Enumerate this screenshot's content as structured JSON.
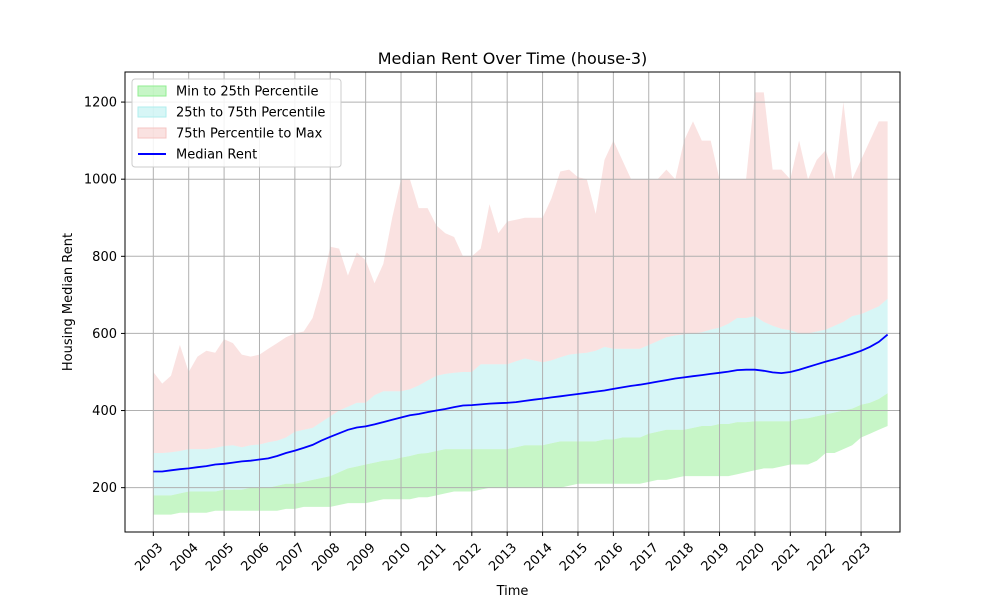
{
  "chart_data": {
    "type": "area",
    "title": "Median Rent Over Time (house-3)",
    "xlabel": "Time",
    "ylabel": "Housing Median Rent",
    "xlim": [
      2002.2,
      2024.1
    ],
    "ylim": [
      85,
      1278
    ],
    "xticks": [
      2003,
      2004,
      2005,
      2006,
      2007,
      2008,
      2009,
      2010,
      2011,
      2012,
      2013,
      2014,
      2015,
      2016,
      2017,
      2018,
      2019,
      2020,
      2021,
      2022,
      2023
    ],
    "yticks": [
      200,
      400,
      600,
      800,
      1000,
      1200
    ],
    "grid": true,
    "legend_position": "top-left",
    "legend": [
      {
        "label": "Min to 25th Percentile",
        "kind": "fill",
        "color": "#90ee90"
      },
      {
        "label": "25th to 75th Percentile",
        "kind": "fill",
        "color": "#afeeee"
      },
      {
        "label": "75th Percentile to Max",
        "kind": "fill",
        "color": "#f5c6c4"
      },
      {
        "label": "Median Rent",
        "kind": "line",
        "color": "#0000ff"
      }
    ],
    "colors": {
      "min_band": "#90ee90",
      "mid_band": "#afeeee",
      "max_band": "#f5c6c4",
      "median": "#0000ff",
      "grid": "#b0b0b0"
    },
    "x": [
      2003.0,
      2003.25,
      2003.5,
      2003.75,
      2004.0,
      2004.25,
      2004.5,
      2004.75,
      2005.0,
      2005.25,
      2005.5,
      2005.75,
      2006.0,
      2006.25,
      2006.5,
      2006.75,
      2007.0,
      2007.25,
      2007.5,
      2007.75,
      2008.0,
      2008.25,
      2008.5,
      2008.75,
      2009.0,
      2009.25,
      2009.5,
      2009.75,
      2010.0,
      2010.25,
      2010.5,
      2010.75,
      2011.0,
      2011.25,
      2011.5,
      2011.75,
      2012.0,
      2012.25,
      2012.5,
      2012.75,
      2013.0,
      2013.25,
      2013.5,
      2013.75,
      2014.0,
      2014.25,
      2014.5,
      2014.75,
      2015.0,
      2015.25,
      2015.5,
      2015.75,
      2016.0,
      2016.25,
      2016.5,
      2016.75,
      2017.0,
      2017.25,
      2017.5,
      2017.75,
      2018.0,
      2018.25,
      2018.5,
      2018.75,
      2019.0,
      2019.25,
      2019.5,
      2019.75,
      2020.0,
      2020.25,
      2020.5,
      2020.75,
      2021.0,
      2021.25,
      2021.5,
      2021.75,
      2022.0,
      2022.25,
      2022.5,
      2022.75,
      2023.0,
      2023.25,
      2023.5,
      2023.75
    ],
    "series": [
      {
        "name": "Min to 25th Percentile",
        "role": "min",
        "values": [
          130,
          130,
          130,
          135,
          135,
          135,
          135,
          140,
          140,
          140,
          140,
          140,
          140,
          140,
          140,
          145,
          145,
          150,
          150,
          150,
          150,
          155,
          160,
          160,
          160,
          165,
          170,
          170,
          170,
          170,
          175,
          175,
          180,
          185,
          190,
          190,
          190,
          195,
          200,
          200,
          200,
          200,
          200,
          200,
          200,
          200,
          200,
          205,
          210,
          210,
          210,
          210,
          210,
          210,
          210,
          210,
          215,
          220,
          220,
          225,
          230,
          230,
          230,
          230,
          230,
          230,
          235,
          240,
          245,
          250,
          250,
          255,
          260,
          260,
          260,
          270,
          290,
          290,
          300,
          310,
          330,
          340,
          350,
          360
        ]
      },
      {
        "name": "25th Percentile",
        "role": "p25",
        "values": [
          180,
          180,
          180,
          185,
          190,
          190,
          190,
          190,
          195,
          195,
          195,
          200,
          200,
          200,
          205,
          210,
          210,
          215,
          220,
          225,
          230,
          240,
          250,
          255,
          260,
          265,
          270,
          272,
          278,
          282,
          288,
          290,
          295,
          300,
          300,
          300,
          300,
          300,
          300,
          300,
          300,
          305,
          310,
          310,
          310,
          315,
          320,
          320,
          320,
          320,
          320,
          325,
          325,
          330,
          330,
          330,
          340,
          345,
          350,
          350,
          350,
          355,
          360,
          360,
          365,
          365,
          370,
          370,
          372,
          372,
          372,
          372,
          372,
          378,
          380,
          385,
          390,
          395,
          400,
          405,
          415,
          420,
          430,
          445
        ]
      },
      {
        "name": "Median Rent",
        "role": "median",
        "values": [
          242,
          242,
          245,
          248,
          250,
          253,
          256,
          260,
          262,
          265,
          268,
          270,
          273,
          276,
          282,
          290,
          296,
          303,
          311,
          322,
          332,
          341,
          350,
          356,
          359,
          364,
          370,
          376,
          382,
          388,
          391,
          396,
          400,
          404,
          409,
          413,
          414,
          416,
          418,
          419,
          420,
          422,
          425,
          428,
          431,
          434,
          437,
          440,
          443,
          446,
          449,
          452,
          456,
          460,
          464,
          467,
          471,
          475,
          479,
          483,
          486,
          489,
          492,
          495,
          498,
          501,
          505,
          506,
          506,
          503,
          499,
          497,
          500,
          506,
          513,
          520,
          527,
          533,
          540,
          547,
          555,
          565,
          578,
          597
        ]
      },
      {
        "name": "75th Percentile",
        "role": "p75",
        "values": [
          290,
          290,
          292,
          295,
          300,
          300,
          300,
          303,
          308,
          310,
          305,
          310,
          312,
          318,
          322,
          330,
          345,
          350,
          355,
          370,
          385,
          400,
          410,
          420,
          420,
          440,
          450,
          450,
          450,
          455,
          465,
          478,
          490,
          495,
          498,
          500,
          500,
          520,
          520,
          520,
          520,
          528,
          535,
          530,
          525,
          530,
          538,
          545,
          548,
          550,
          555,
          565,
          560,
          560,
          560,
          560,
          570,
          580,
          590,
          595,
          598,
          600,
          603,
          610,
          615,
          625,
          640,
          640,
          645,
          630,
          620,
          612,
          608,
          600,
          600,
          605,
          610,
          620,
          630,
          645,
          650,
          660,
          670,
          690
        ]
      },
      {
        "name": "75th Percentile to Max",
        "role": "max",
        "values": [
          500,
          470,
          490,
          570,
          500,
          540,
          555,
          550,
          585,
          575,
          545,
          540,
          545,
          560,
          575,
          590,
          600,
          605,
          640,
          720,
          825,
          820,
          750,
          810,
          790,
          730,
          780,
          900,
          1000,
          1000,
          925,
          925,
          880,
          860,
          850,
          800,
          800,
          820,
          935,
          860,
          890,
          895,
          900,
          900,
          900,
          950,
          1020,
          1025,
          1005,
          1000,
          910,
          1050,
          1100,
          1050,
          1000,
          1000,
          1000,
          1000,
          1025,
          1000,
          1100,
          1150,
          1100,
          1100,
          1000,
          1000,
          1000,
          1000,
          1225,
          1225,
          1025,
          1025,
          1000,
          1100,
          1000,
          1050,
          1075,
          1000,
          1200,
          1000,
          1050,
          1100,
          1150,
          1150
        ]
      }
    ]
  }
}
